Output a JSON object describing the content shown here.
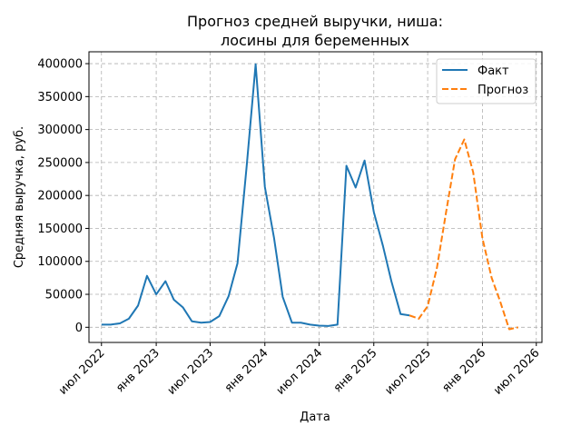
{
  "chart_data": {
    "type": "line",
    "title_lines": [
      "Прогноз средней выручки, ниша:",
      "лосины для беременных"
    ],
    "xlabel": "Дата",
    "ylabel": "Средняя выручка, руб.",
    "ylim": [
      -23000,
      418000
    ],
    "yticks": [
      0,
      50000,
      100000,
      150000,
      200000,
      250000,
      300000,
      350000,
      400000
    ],
    "xlim": [
      "2022-05-20",
      "2026-07-20"
    ],
    "xticks": [
      {
        "date": "2022-07-01",
        "label": "июл 2022"
      },
      {
        "date": "2023-01-01",
        "label": "янв 2023"
      },
      {
        "date": "2023-07-01",
        "label": "июл 2023"
      },
      {
        "date": "2024-01-01",
        "label": "янв 2024"
      },
      {
        "date": "2024-07-01",
        "label": "июл 2024"
      },
      {
        "date": "2025-01-01",
        "label": "янв 2025"
      },
      {
        "date": "2025-07-01",
        "label": "июл 2025"
      },
      {
        "date": "2026-01-01",
        "label": "янв 2026"
      },
      {
        "date": "2026-07-01",
        "label": "июл 2026"
      }
    ],
    "grid": true,
    "legend_position": "top-right",
    "series": [
      {
        "name": "Факт",
        "color": "#1f77b4",
        "style": "solid",
        "points": [
          [
            "2022-07-01",
            4000
          ],
          [
            "2022-08-01",
            4000
          ],
          [
            "2022-09-01",
            6000
          ],
          [
            "2022-10-01",
            13000
          ],
          [
            "2022-11-01",
            33000
          ],
          [
            "2022-12-01",
            78000
          ],
          [
            "2023-01-01",
            50000
          ],
          [
            "2023-02-01",
            70000
          ],
          [
            "2023-03-01",
            42000
          ],
          [
            "2023-04-01",
            30000
          ],
          [
            "2023-05-01",
            9000
          ],
          [
            "2023-06-01",
            7000
          ],
          [
            "2023-07-01",
            8000
          ],
          [
            "2023-08-01",
            17000
          ],
          [
            "2023-09-01",
            47000
          ],
          [
            "2023-10-01",
            97000
          ],
          [
            "2023-11-01",
            245000
          ],
          [
            "2023-12-01",
            399000
          ],
          [
            "2024-01-01",
            213000
          ],
          [
            "2024-02-01",
            135000
          ],
          [
            "2024-03-01",
            46000
          ],
          [
            "2024-04-01",
            7000
          ],
          [
            "2024-05-01",
            7000
          ],
          [
            "2024-06-01",
            4000
          ],
          [
            "2024-07-01",
            2500
          ],
          [
            "2024-08-01",
            2000
          ],
          [
            "2024-09-01",
            4000
          ],
          [
            "2024-10-01",
            245000
          ],
          [
            "2024-11-01",
            212000
          ],
          [
            "2024-12-01",
            253000
          ],
          [
            "2025-01-01",
            175000
          ],
          [
            "2025-02-01",
            123000
          ],
          [
            "2025-03-01",
            70000
          ],
          [
            "2025-04-01",
            20000
          ],
          [
            "2025-05-01",
            18000
          ]
        ]
      },
      {
        "name": "Прогноз",
        "color": "#ff7f0e",
        "style": "dashed",
        "points": [
          [
            "2025-05-01",
            18000
          ],
          [
            "2025-06-01",
            13000
          ],
          [
            "2025-07-01",
            32000
          ],
          [
            "2025-08-01",
            90000
          ],
          [
            "2025-09-01",
            175000
          ],
          [
            "2025-10-01",
            255000
          ],
          [
            "2025-11-01",
            285000
          ],
          [
            "2025-12-01",
            235000
          ],
          [
            "2026-01-01",
            135000
          ],
          [
            "2026-02-01",
            75000
          ],
          [
            "2026-03-01",
            40000
          ],
          [
            "2026-04-01",
            -3000
          ],
          [
            "2026-05-01",
            0
          ]
        ]
      }
    ]
  }
}
